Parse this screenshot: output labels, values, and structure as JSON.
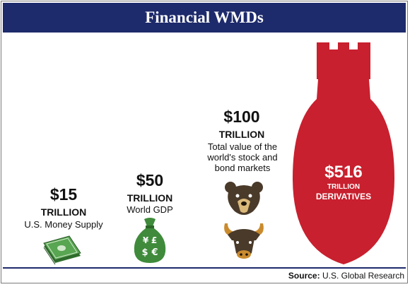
{
  "header": {
    "title": "Financial WMDs"
  },
  "chart_data": {
    "type": "bar",
    "title": "Financial WMDs",
    "categories": [
      "U.S. Money Supply",
      "World GDP",
      "Total value of the world's stock and bond markets",
      "DERIVATIVES"
    ],
    "unit": "TRILLION",
    "values": [
      15,
      50,
      100,
      516
    ],
    "labels": [
      "$15",
      "$50",
      "$100",
      "$516"
    ],
    "icons": [
      "cash-stack-icon",
      "money-bag-icon",
      "bear-and-bull-icon",
      "bomb-icon"
    ],
    "colors": {
      "header": "#1d2a6b",
      "bomb": "#c8202e",
      "money": "#3f8b3b"
    }
  },
  "items": [
    {
      "amount": "$15",
      "unit": "TRILLION",
      "desc": "U.S. Money Supply"
    },
    {
      "amount": "$50",
      "unit": "TRILLION",
      "desc": "World GDP"
    },
    {
      "amount": "$100",
      "unit": "TRILLION",
      "desc": "Total value of the world's stock and bond markets"
    },
    {
      "amount": "$516",
      "unit": "TRILLION",
      "desc": "DERIVATIVES"
    }
  ],
  "footer": {
    "source_label": "Source:",
    "source_value": "U.S. Global Research"
  }
}
